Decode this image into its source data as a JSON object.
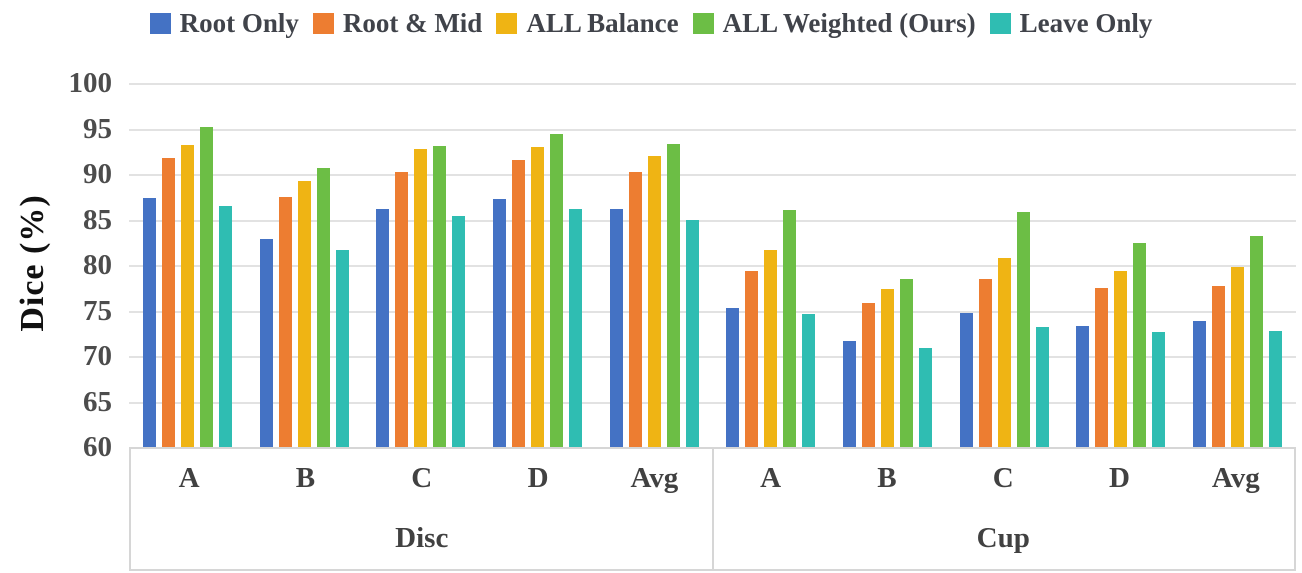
{
  "chart_data": {
    "type": "bar",
    "title": "",
    "ylabel": "Dice (%)",
    "xlabel": "",
    "ylim": [
      60,
      100
    ],
    "yticks": [
      100,
      95,
      90,
      85,
      80,
      75,
      70,
      65,
      60
    ],
    "grid": true,
    "legend_position": "top",
    "sections": [
      {
        "label": "Disc",
        "categories": [
          "A",
          "B",
          "C",
          "D",
          "Avg"
        ]
      },
      {
        "label": "Cup",
        "categories": [
          "A",
          "B",
          "C",
          "D",
          "Avg"
        ]
      }
    ],
    "series": [
      {
        "name": "Root Only",
        "color": "#4472C4",
        "values": [
          87.4,
          82.9,
          86.2,
          87.3,
          86.2,
          75.3,
          71.7,
          74.7,
          73.3,
          73.8
        ]
      },
      {
        "name": "Root & Mid",
        "color": "#ED7D31",
        "values": [
          91.8,
          87.5,
          90.2,
          91.5,
          90.2,
          79.3,
          75.8,
          78.5,
          77.5,
          77.7
        ]
      },
      {
        "name": "ALL Balance",
        "color": "#EFB414",
        "values": [
          93.2,
          89.2,
          92.7,
          93.0,
          92.0,
          81.6,
          77.4,
          80.8,
          79.3,
          79.8
        ]
      },
      {
        "name": "ALL Weighted (Ours)",
        "color": "#6CBE45",
        "values": [
          95.2,
          90.7,
          93.1,
          94.4,
          93.3,
          86.1,
          78.5,
          85.8,
          82.4,
          83.2
        ]
      },
      {
        "name": "Leave Only",
        "color": "#2FBDB2",
        "values": [
          86.5,
          81.7,
          85.4,
          86.2,
          85.0,
          74.6,
          70.9,
          73.2,
          72.6,
          72.7
        ]
      }
    ],
    "colors": {
      "gridline": "#E2E2E2",
      "axis_border": "#D6D6D6",
      "legend_text": "#40434A",
      "tick_text": "#4C4C4C"
    }
  }
}
